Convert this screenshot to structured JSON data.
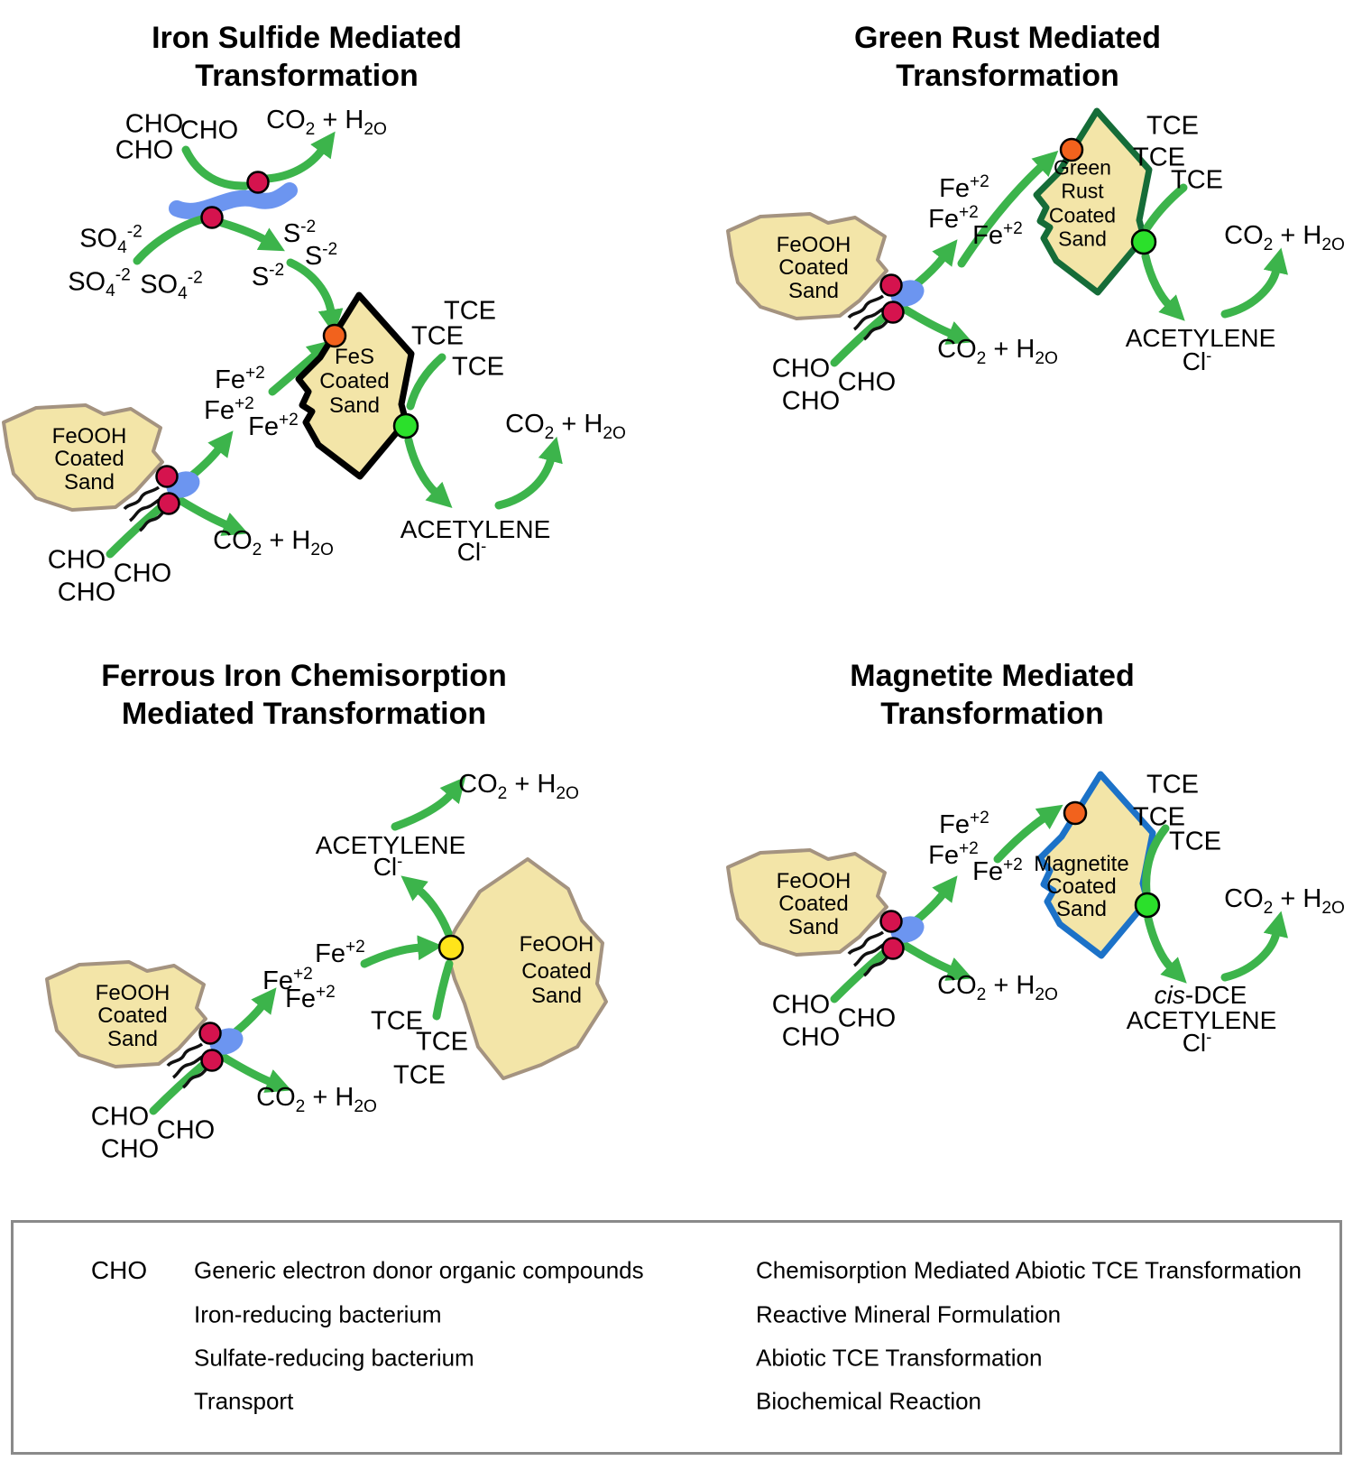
{
  "colors": {
    "arrow_green": "#3CB44B",
    "bacterium_blue": "#6C95F0",
    "sand_fill": "#F3E5A8",
    "rock_border": "#A49380",
    "fes_border": "#000000",
    "green_rust_border": "#156C38",
    "magnetite_border": "#1C72C8",
    "dot_yellow": "#FFE41A",
    "dot_orange": "#F2621D",
    "dot_green": "#2BE02B",
    "dot_red": "#D5134E"
  },
  "panels": {
    "iron_sulfide": {
      "title_lines": [
        "Iron Sulfide Mediated",
        "Transformation"
      ],
      "srb": {
        "cho": [
          "CHO",
          "CHO",
          "CHO"
        ],
        "co2": "CO_2 + H_2O",
        "so4": [
          "SO_4^-2",
          "SO_4^-2",
          "SO_4^-2"
        ],
        "s2": [
          "S^-2",
          "S^-2",
          "S^-2"
        ]
      },
      "donor": {
        "rock_lines": [
          "FeOOH",
          "Coated",
          "Sand"
        ],
        "cho": [
          "CHO",
          "CHO",
          "CHO"
        ],
        "co2": "CO_2 + H_2O",
        "fe2": [
          "Fe^+2",
          "Fe^+2",
          "Fe^+2"
        ]
      },
      "mineral_lines": [
        "FeS",
        "Coated",
        "Sand"
      ],
      "tce": [
        "TCE",
        "TCE",
        "TCE"
      ],
      "acetylene": "ACETYLENE",
      "cl": "Cl^-",
      "co2_final": "CO_2 + H_2O"
    },
    "green_rust": {
      "title_lines": [
        "Green Rust Mediated",
        "Transformation"
      ],
      "donor": {
        "rock_lines": [
          "FeOOH",
          "Coated",
          "Sand"
        ],
        "cho": [
          "CHO",
          "CHO",
          "CHO"
        ],
        "co2": "CO_2 + H_2O",
        "fe2": [
          "Fe^+2",
          "Fe^+2",
          "Fe^+2"
        ]
      },
      "mineral_lines": [
        "Green",
        "Rust",
        "Coated",
        "Sand"
      ],
      "tce": [
        "TCE",
        "TCE",
        "TCE"
      ],
      "acetylene": "ACETYLENE",
      "cl": "Cl^-",
      "co2_final": "CO_2 + H_2O"
    },
    "ferrous_iron": {
      "title_lines": [
        "Ferrous Iron Chemisorption",
        "Mediated Transformation"
      ],
      "donor": {
        "rock_lines": [
          "FeOOH",
          "Coated",
          "Sand"
        ],
        "cho": [
          "CHO",
          "CHO",
          "CHO"
        ],
        "co2": "CO_2 + H_2O"
      },
      "fe2": [
        "Fe^+2",
        "Fe^+2",
        "Fe^+2"
      ],
      "sorbent_lines": [
        "FeOOH",
        "Coated",
        "Sand"
      ],
      "tce": [
        "TCE",
        "TCE",
        "TCE"
      ],
      "acetylene": "ACETYLENE",
      "cl": "Cl^-",
      "co2_final": "CO_2 + H_2O"
    },
    "magnetite": {
      "title_lines": [
        "Magnetite Mediated",
        "Transformation"
      ],
      "donor": {
        "rock_lines": [
          "FeOOH",
          "Coated",
          "Sand"
        ],
        "cho": [
          "CHO",
          "CHO",
          "CHO"
        ],
        "co2": "CO_2 + H_2O",
        "fe2": [
          "Fe^+2",
          "Fe^+2",
          "Fe^+2"
        ]
      },
      "mineral_lines": [
        "Magnetite",
        "Coated",
        "Sand"
      ],
      "tce": [
        "TCE",
        "TCE",
        "TCE"
      ],
      "cis_dce": "*cis*-DCE",
      "acetylene": "ACETYLENE",
      "cl": "Cl^-",
      "co2_final": "CO_2 + H_2O"
    }
  },
  "legend": {
    "left": [
      {
        "symbol": "CHO",
        "label": "Generic electron donor organic compounds"
      },
      {
        "icon": "iron-reducing-bacterium-icon",
        "label": "Iron-reducing bacterium"
      },
      {
        "icon": "sulfate-reducing-bacterium-icon",
        "label": "Sulfate-reducing bacterium"
      },
      {
        "icon": "transport-arrow-icon",
        "label": "Transport"
      }
    ],
    "right": [
      {
        "color": "#FFE41A",
        "label": "Chemisorption Mediated Abiotic TCE Transformation"
      },
      {
        "color": "#F2621D",
        "label": "Reactive Mineral Formulation"
      },
      {
        "color": "#2BE02B",
        "label": "Abiotic TCE Transformation"
      },
      {
        "color": "#D5134E",
        "label": "Biochemical Reaction"
      }
    ]
  }
}
